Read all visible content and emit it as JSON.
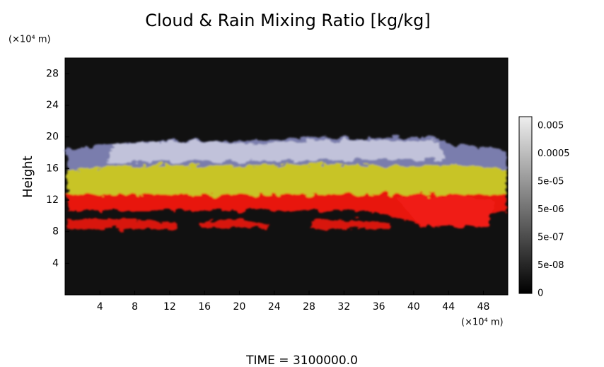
{
  "plot": {
    "title": "Cloud & Rain Mixing Ratio [kg/kg]",
    "y_unit": "(×10⁴ m)",
    "x_unit": "(×10⁴ m)",
    "y_label": "Height",
    "xlim": [
      0,
      50.8
    ],
    "ylim": [
      0,
      30
    ],
    "xticks": [
      4,
      8,
      12,
      16,
      20,
      24,
      28,
      32,
      36,
      40,
      44,
      48
    ],
    "yticks": [
      4,
      8,
      12,
      16,
      20,
      24,
      28
    ],
    "colorbar": {
      "labels": [
        "0.005",
        "0.0005",
        "5e-05",
        "5e-06",
        "5e-07",
        "5e-08",
        "0"
      ]
    },
    "time_label": "TIME = 3100000.0"
  }
}
